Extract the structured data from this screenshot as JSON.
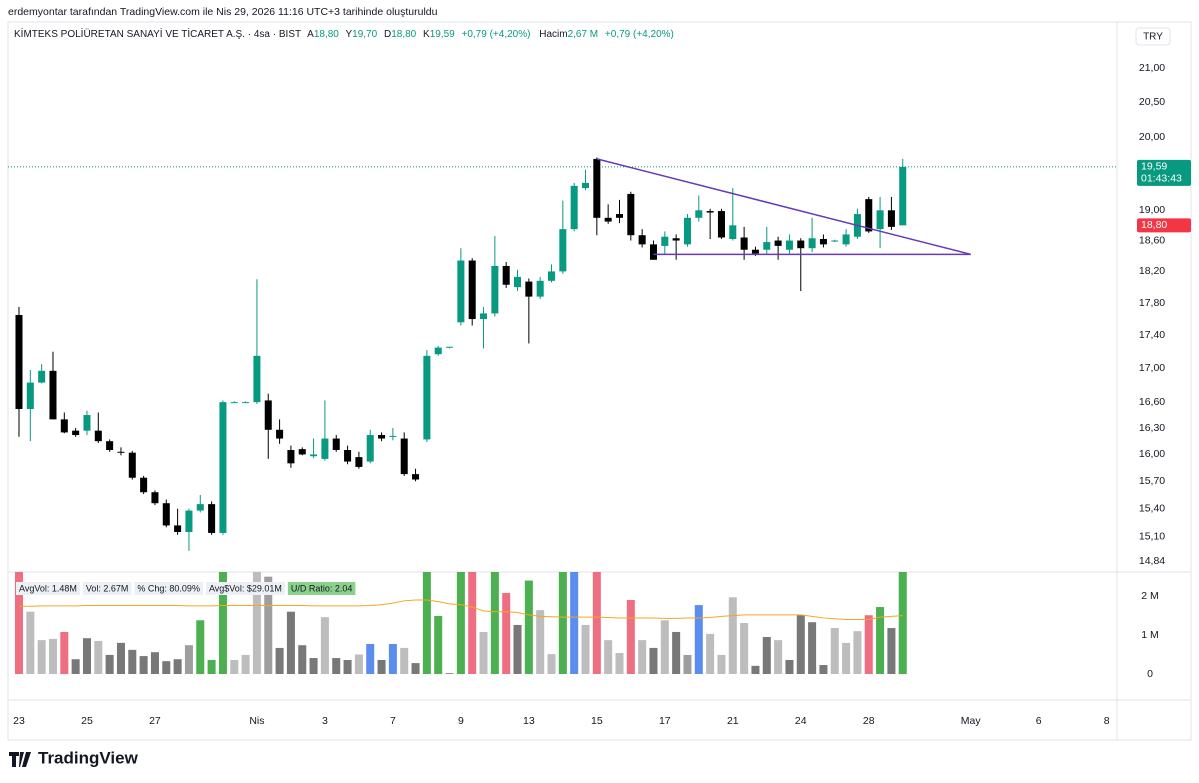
{
  "header": {
    "caption": "erdemyontar tarafından TradingView.com ile Nis 29, 2026 11:16 UTC+3 tarihinde oluşturuldu"
  },
  "legend": {
    "symbol": "KİMTEKS POLİÜRETAN SANAYİ VE TİCARET A.Ş. · 4sa · BIST",
    "open_key": "A",
    "open": "18,80",
    "high_key": "Y",
    "high": "19,70",
    "low_key": "D",
    "low": "18,80",
    "close_key": "K",
    "close": "19,59",
    "change": "+0,79 (+4,20%)",
    "volume_key": "Hacim",
    "volume": "2,67 M",
    "volume_change": "+0,79 (+4,20%)"
  },
  "currency": "TRY",
  "footer": {
    "brand": "TradingView"
  },
  "chart_data": {
    "type": "candlestick",
    "log_scale": true,
    "grid": false,
    "up_color": "#089981",
    "down_color": "#000000",
    "xlim": [
      -0.97,
      96.91
    ],
    "xticks": [
      {
        "value": 0,
        "label": "23"
      },
      {
        "value": 6,
        "label": "25"
      },
      {
        "value": 12,
        "label": "27"
      },
      {
        "value": 21,
        "label": "Nis"
      },
      {
        "value": 27,
        "label": "3"
      },
      {
        "value": 33,
        "label": "7"
      },
      {
        "value": 39,
        "label": "9"
      },
      {
        "value": 45,
        "label": "13"
      },
      {
        "value": 51,
        "label": "15"
      },
      {
        "value": 57,
        "label": "17"
      },
      {
        "value": 63,
        "label": "21"
      },
      {
        "value": 69,
        "label": "24"
      },
      {
        "value": 75,
        "label": "28"
      },
      {
        "value": 84,
        "label": "May"
      },
      {
        "value": 90,
        "label": "6"
      },
      {
        "value": 96,
        "label": "8"
      }
    ],
    "ylim": [
      14.75,
      21.42
    ],
    "yticks": [
      {
        "value": 21,
        "label": "21,00"
      },
      {
        "value": 20.5,
        "label": "20,50"
      },
      {
        "value": 20,
        "label": "20,00"
      },
      {
        "value": 19,
        "label": "19,00"
      },
      {
        "value": 18.6,
        "label": "18,60"
      },
      {
        "value": 18.2,
        "label": "18,20"
      },
      {
        "value": 17.8,
        "label": "17,80"
      },
      {
        "value": 17.4,
        "label": "17,40"
      },
      {
        "value": 17,
        "label": "17,00"
      },
      {
        "value": 16.6,
        "label": "16,60"
      },
      {
        "value": 16.3,
        "label": "16,30"
      },
      {
        "value": 16,
        "label": "16,00"
      },
      {
        "value": 15.7,
        "label": "15,70"
      },
      {
        "value": 15.4,
        "label": "15,40"
      },
      {
        "value": 15.1,
        "label": "15,10"
      },
      {
        "value": 14.84,
        "label": "14,84"
      }
    ],
    "open": [
      17.65,
      16.52,
      16.83,
      16.97,
      16.4,
      16.27,
      16.27,
      16.27,
      16.15,
      16.03,
      16.02,
      15.74,
      15.58,
      15.46,
      15.22,
      15.15,
      15.38,
      15.45,
      15.14,
      16.6,
      16.6,
      16.6,
      16.62,
      16.28,
      16.05,
      16.06,
      15.98,
      15.95,
      16.18,
      16.05,
      15.97,
      15.92,
      16.22,
      16.2,
      16.18,
      15.78,
      16.17,
      17.17,
      17.25,
      17.56,
      18.34,
      17.6,
      17.67,
      18.27,
      18.0,
      18.07,
      17.88,
      18.08,
      18.2,
      18.75,
      19.3,
      19.7,
      18.9,
      18.95,
      19.22,
      18.67,
      18.55,
      18.53,
      18.63,
      18.55,
      18.9,
      18.99,
      18.99,
      18.62,
      18.64,
      18.48,
      18.48,
      18.6,
      18.48,
      18.6,
      18.5,
      18.62,
      18.59,
      18.55,
      18.65,
      19.15,
      18.75,
      19.0,
      18.8
    ],
    "high": [
      17.75,
      16.98,
      17.05,
      17.2,
      16.48,
      16.3,
      16.5,
      16.48,
      16.17,
      16.08,
      16.04,
      15.76,
      15.6,
      15.5,
      15.4,
      15.4,
      15.55,
      15.48,
      16.62,
      16.61,
      16.61,
      18.1,
      16.7,
      16.4,
      16.1,
      16.08,
      16.18,
      16.62,
      16.22,
      16.1,
      16.03,
      16.28,
      16.25,
      16.3,
      16.25,
      15.84,
      17.22,
      17.27,
      17.26,
      18.5,
      18.37,
      17.75,
      18.66,
      18.32,
      18.22,
      18.11,
      18.13,
      18.29,
      19.13,
      19.37,
      19.55,
      19.72,
      19.08,
      19.14,
      19.25,
      18.75,
      18.6,
      18.72,
      18.68,
      18.95,
      19.2,
      19.02,
      19.02,
      19.3,
      18.78,
      18.52,
      18.78,
      18.65,
      18.68,
      18.63,
      18.9,
      18.68,
      18.61,
      18.75,
      19.02,
      19.18,
      19.18,
      19.18,
      19.7
    ],
    "low": [
      16.2,
      16.15,
      16.82,
      16.4,
      16.24,
      16.2,
      16.22,
      16.13,
      16.03,
      15.99,
      15.72,
      15.56,
      15.44,
      15.2,
      15.12,
      14.95,
      15.36,
      15.12,
      15.12,
      16.59,
      16.59,
      16.58,
      15.95,
      16.12,
      15.85,
      15.99,
      15.96,
      15.93,
      16.03,
      15.89,
      15.84,
      15.9,
      16.15,
      16.16,
      15.76,
      15.7,
      16.14,
      17.15,
      17.24,
      17.52,
      17.52,
      17.24,
      17.63,
      17.99,
      17.95,
      17.3,
      17.85,
      18.06,
      18.17,
      18.72,
      19.27,
      18.67,
      18.82,
      18.83,
      18.6,
      18.51,
      18.35,
      18.42,
      18.35,
      18.52,
      18.85,
      18.62,
      18.62,
      18.6,
      18.35,
      18.4,
      18.43,
      18.35,
      18.43,
      17.95,
      18.45,
      18.51,
      18.58,
      18.52,
      18.62,
      18.7,
      18.5,
      18.74,
      18.8
    ],
    "close": [
      16.52,
      16.83,
      16.97,
      16.4,
      16.25,
      16.22,
      16.45,
      16.15,
      16.05,
      16.02,
      15.74,
      15.58,
      15.46,
      15.22,
      15.15,
      15.38,
      15.45,
      15.14,
      16.6,
      16.6,
      16.6,
      17.15,
      16.28,
      16.18,
      15.9,
      16.0,
      16.0,
      16.18,
      16.05,
      15.92,
      15.86,
      16.22,
      16.18,
      16.21,
      15.78,
      15.72,
      17.15,
      17.25,
      17.26,
      18.34,
      17.6,
      17.67,
      18.27,
      18.03,
      18.13,
      17.88,
      18.08,
      18.2,
      18.75,
      19.33,
      19.37,
      18.9,
      18.85,
      18.9,
      18.67,
      18.55,
      18.35,
      18.65,
      18.6,
      18.9,
      19.0,
      18.97,
      18.64,
      18.8,
      18.48,
      18.43,
      18.58,
      18.53,
      18.6,
      18.5,
      18.63,
      18.55,
      18.6,
      18.68,
      18.95,
      18.72,
      19.0,
      18.78,
      19.59
    ],
    "last_price": {
      "value": 19.59,
      "label": "19,59",
      "countdown": "01:43:43",
      "color": "#089981"
    },
    "prev_close": {
      "value": 18.8,
      "label": "18,80",
      "color": "#f23645"
    },
    "trendlines": [
      {
        "from": [
          51,
          19.7
        ],
        "to": [
          84,
          18.42
        ]
      },
      {
        "from": [
          56,
          18.42
        ],
        "to": [
          84,
          18.42
        ]
      }
    ],
    "trendline_color": "#673ab7",
    "volume": {
      "ylim": [
        0,
        2.62
      ],
      "yticks": [
        {
          "value": 2,
          "label": "2 M"
        },
        {
          "value": 1,
          "label": "1 M"
        },
        0
      ],
      "values": [
        2.8,
        1.6,
        0.87,
        0.9,
        1.08,
        0.38,
        0.92,
        0.85,
        0.49,
        0.8,
        0.62,
        0.46,
        0.56,
        0.33,
        0.38,
        0.74,
        1.38,
        0.36,
        2.8,
        0.36,
        0.49,
        2.8,
        2.5,
        0.67,
        1.6,
        0.74,
        0.41,
        1.46,
        0.41,
        0.36,
        0.5,
        0.77,
        0.36,
        0.77,
        0.67,
        0.28,
        2.8,
        1.49,
        0.02,
        2.8,
        2.8,
        1.08,
        2.8,
        2.08,
        1.26,
        2.4,
        1.64,
        0.51,
        2.8,
        2.8,
        1.26,
        2.8,
        0.87,
        0.54,
        1.9,
        0.87,
        0.67,
        1.38,
        1.08,
        0.49,
        1.77,
        1.03,
        0.49,
        1.97,
        1.31,
        0.21,
        0.95,
        0.87,
        0.36,
        1.51,
        1.33,
        0.23,
        1.18,
        0.8,
        1.1,
        1.51,
        1.72,
        1.18,
        2.67
      ],
      "colors": [
        "#ef6f82",
        "#bdbdbd",
        "#bdbdbd",
        "#bdbdbd",
        "#ef6f82",
        "#787878",
        "#787878",
        "#bdbdbd",
        "#787878",
        "#787878",
        "#787878",
        "#787878",
        "#787878",
        "#787878",
        "#787878",
        "#9e9e9e",
        "#4caf50",
        "#4caf50",
        "#4caf50",
        "#bdbdbd",
        "#bdbdbd",
        "#bdbdbd",
        "#9e9e9e",
        "#787878",
        "#787878",
        "#787878",
        "#787878",
        "#bdbdbd",
        "#787878",
        "#787878",
        "#bdbdbd",
        "#5b8def",
        "#787878",
        "#5b8def",
        "#bdbdbd",
        "#787878",
        "#4caf50",
        "#4caf50",
        "#787878",
        "#4caf50",
        "#ef6f82",
        "#bdbdbd",
        "#4caf50",
        "#ef6f82",
        "#787878",
        "#4caf50",
        "#bdbdbd",
        "#bdbdbd",
        "#4caf50",
        "#5b8def",
        "#bdbdbd",
        "#ef6f82",
        "#bdbdbd",
        "#bdbdbd",
        "#ef6f82",
        "#bdbdbd",
        "#787878",
        "#bdbdbd",
        "#787878",
        "#9e9e9e",
        "#5b8def",
        "#bdbdbd",
        "#bdbdbd",
        "#bdbdbd",
        "#bdbdbd",
        "#787878",
        "#787878",
        "#bdbdbd",
        "#787878",
        "#787878",
        "#787878",
        "#787878",
        "#bdbdbd",
        "#bdbdbd",
        "#bdbdbd",
        "#ef6f82",
        "#4caf50",
        "#787878",
        "#4caf50"
      ],
      "ma": [
        1.74,
        1.74,
        1.75,
        1.75,
        1.75,
        1.75,
        1.76,
        1.76,
        1.76,
        1.76,
        1.76,
        1.76,
        1.76,
        1.76,
        1.76,
        1.75,
        1.75,
        1.75,
        1.76,
        1.76,
        1.76,
        1.76,
        1.76,
        1.76,
        1.76,
        1.76,
        1.75,
        1.75,
        1.75,
        1.75,
        1.75,
        1.76,
        1.78,
        1.82,
        1.88,
        1.9,
        1.9,
        1.86,
        1.8,
        1.78,
        1.72,
        1.62,
        1.6,
        1.6,
        1.58,
        1.52,
        1.48,
        1.47,
        1.46,
        1.46,
        1.46,
        1.46,
        1.45,
        1.44,
        1.44,
        1.44,
        1.44,
        1.43,
        1.43,
        1.44,
        1.44,
        1.45,
        1.48,
        1.5,
        1.52,
        1.52,
        1.52,
        1.52,
        1.52,
        1.52,
        1.48,
        1.44,
        1.42,
        1.4,
        1.4,
        1.4,
        1.46,
        1.48,
        1.5
      ],
      "ma_color": "#f5a623",
      "stats": [
        "AvgVol: 1.48M",
        "Vol: 2.67M",
        "% Chg: 80.09%",
        "Avg$Vol: $29.01M",
        "U/D Ratio: 2.04"
      ]
    }
  }
}
